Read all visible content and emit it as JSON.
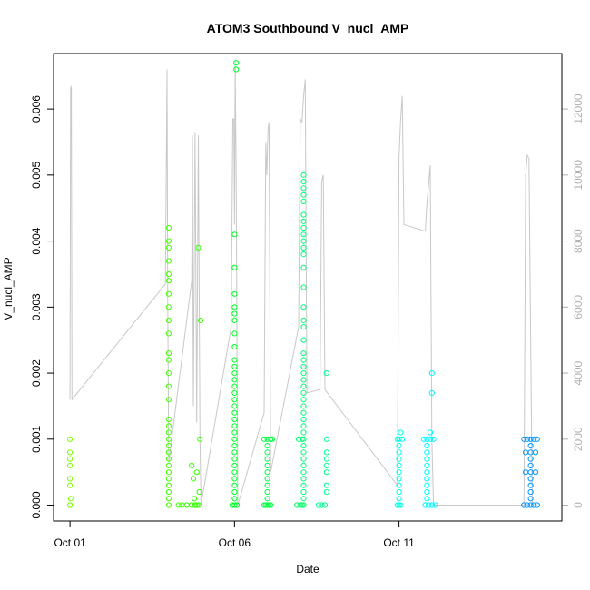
{
  "chart_data": {
    "type": "scatter",
    "title": "ATOM3 Southbound V_nucl_AMP",
    "xlabel": "Date",
    "ylabel": "V_nucl_AMP",
    "x_ticks": [
      "Oct 01",
      "Oct 06",
      "Oct 11"
    ],
    "x_tick_days": [
      1,
      6,
      11
    ],
    "xlim_days": [
      0.5,
      15.95
    ],
    "y_ticks": [
      "0.000",
      "0.001",
      "0.002",
      "0.003",
      "0.004",
      "0.005",
      "0.006"
    ],
    "ylim": [
      -0.00024,
      0.00684
    ],
    "y2_ticks": [
      "0",
      "2000",
      "4000",
      "6000",
      "8000",
      "10000",
      "12000"
    ],
    "y2lim": [
      -480,
      13680
    ],
    "point_color_note": "green-to-blue gradient over time",
    "points": [
      [
        1.0,
        0.0,
        "#7cff00"
      ],
      [
        1.0,
        0.0,
        "#7cff00"
      ],
      [
        1.02,
        0.0001,
        "#7cff00"
      ],
      [
        1.0,
        0.0003,
        "#7cff00"
      ],
      [
        1.0,
        0.0004,
        "#7cff00"
      ],
      [
        1.0,
        0.0006,
        "#7cff00"
      ],
      [
        1.0,
        0.0007,
        "#7cff00"
      ],
      [
        1.0,
        0.0008,
        "#7cff00"
      ],
      [
        1.0,
        0.001,
        "#7cff00"
      ],
      [
        4.0,
        0.0,
        "#44ff00"
      ],
      [
        4.0,
        0.0001,
        "#44ff00"
      ],
      [
        4.0,
        0.0002,
        "#44ff00"
      ],
      [
        4.0,
        0.0003,
        "#44ff00"
      ],
      [
        4.0,
        0.0004,
        "#44ff00"
      ],
      [
        4.0,
        0.0005,
        "#44ff00"
      ],
      [
        4.0,
        0.0006,
        "#44ff00"
      ],
      [
        4.0,
        0.0007,
        "#44ff00"
      ],
      [
        4.0,
        0.0008,
        "#44ff00"
      ],
      [
        4.0,
        0.0009,
        "#44ff00"
      ],
      [
        4.0,
        0.001,
        "#44ff00"
      ],
      [
        4.0,
        0.0011,
        "#44ff00"
      ],
      [
        4.0,
        0.0012,
        "#44ff00"
      ],
      [
        4.0,
        0.0013,
        "#44ff00"
      ],
      [
        4.0,
        0.0016,
        "#44ff00"
      ],
      [
        4.0,
        0.0018,
        "#44ff00"
      ],
      [
        4.0,
        0.002,
        "#44ff00"
      ],
      [
        4.0,
        0.0022,
        "#44ff00"
      ],
      [
        4.0,
        0.0023,
        "#44ff00"
      ],
      [
        4.0,
        0.0026,
        "#44ff00"
      ],
      [
        4.0,
        0.0028,
        "#44ff00"
      ],
      [
        4.0,
        0.003,
        "#44ff00"
      ],
      [
        4.0,
        0.0032,
        "#44ff00"
      ],
      [
        4.0,
        0.0034,
        "#44ff00"
      ],
      [
        4.0,
        0.0035,
        "#44ff00"
      ],
      [
        4.0,
        0.0037,
        "#44ff00"
      ],
      [
        4.0,
        0.0039,
        "#44ff00"
      ],
      [
        4.0,
        0.004,
        "#44ff00"
      ],
      [
        4.0,
        0.0042,
        "#44ff00"
      ],
      [
        4.3,
        0.0,
        "#3fff00"
      ],
      [
        4.4,
        0.0,
        "#3fff00"
      ],
      [
        4.55,
        0.0,
        "#3aff00"
      ],
      [
        4.7,
        0.0,
        "#3aff00"
      ],
      [
        4.8,
        0.0,
        "#36ff00"
      ],
      [
        4.85,
        0.0,
        "#36ff00"
      ],
      [
        4.9,
        0.0,
        "#36ff00"
      ],
      [
        4.78,
        0.0001,
        "#36ff00"
      ],
      [
        4.75,
        0.0004,
        "#36ff00"
      ],
      [
        4.85,
        0.0005,
        "#36ff00"
      ],
      [
        4.7,
        0.0006,
        "#36ff00"
      ],
      [
        4.93,
        0.0002,
        "#36ff00"
      ],
      [
        4.95,
        0.001,
        "#36ff00"
      ],
      [
        4.9,
        0.0039,
        "#36ff00"
      ],
      [
        4.97,
        0.0028,
        "#36ff00"
      ],
      [
        6.0,
        0.0,
        "#00ff24"
      ],
      [
        6.0,
        0.0001,
        "#00ff24"
      ],
      [
        6.0,
        0.0002,
        "#00ff24"
      ],
      [
        6.0,
        0.0003,
        "#00ff24"
      ],
      [
        6.0,
        0.0004,
        "#00ff24"
      ],
      [
        6.0,
        0.0005,
        "#00ff24"
      ],
      [
        6.0,
        0.0006,
        "#00ff24"
      ],
      [
        6.0,
        0.0007,
        "#00ff24"
      ],
      [
        6.0,
        0.0008,
        "#00ff24"
      ],
      [
        6.0,
        0.0009,
        "#00ff24"
      ],
      [
        6.0,
        0.001,
        "#00ff24"
      ],
      [
        6.0,
        0.0011,
        "#00ff24"
      ],
      [
        6.0,
        0.0012,
        "#00ff24"
      ],
      [
        6.0,
        0.0013,
        "#00ff24"
      ],
      [
        6.0,
        0.0014,
        "#00ff24"
      ],
      [
        6.0,
        0.0015,
        "#00ff24"
      ],
      [
        6.0,
        0.0016,
        "#00ff24"
      ],
      [
        6.0,
        0.0017,
        "#00ff24"
      ],
      [
        6.0,
        0.0018,
        "#00ff24"
      ],
      [
        6.0,
        0.0019,
        "#00ff24"
      ],
      [
        6.0,
        0.002,
        "#00ff24"
      ],
      [
        6.0,
        0.0021,
        "#00ff24"
      ],
      [
        6.0,
        0.0022,
        "#00ff24"
      ],
      [
        6.0,
        0.0024,
        "#00ff24"
      ],
      [
        6.0,
        0.0026,
        "#00ff24"
      ],
      [
        6.0,
        0.0028,
        "#00ff24"
      ],
      [
        6.0,
        0.0029,
        "#00ff24"
      ],
      [
        6.0,
        0.003,
        "#00ff24"
      ],
      [
        6.0,
        0.0032,
        "#00ff24"
      ],
      [
        6.0,
        0.0036,
        "#00ff24"
      ],
      [
        6.0,
        0.0041,
        "#00ff24"
      ],
      [
        6.05,
        0.0066,
        "#00ff24"
      ],
      [
        6.05,
        0.0067,
        "#00ff24"
      ],
      [
        5.93,
        0.0,
        "#00ff24"
      ],
      [
        6.07,
        0.0,
        "#00ff24"
      ],
      [
        6.9,
        0.0,
        "#00ff40"
      ],
      [
        6.95,
        0.0,
        "#00ff40"
      ],
      [
        7.0,
        0.0,
        "#00ff40"
      ],
      [
        7.05,
        0.0,
        "#00ff40"
      ],
      [
        7.1,
        0.0,
        "#00ff40"
      ],
      [
        7.0,
        0.0001,
        "#00ff40"
      ],
      [
        7.0,
        0.0002,
        "#00ff40"
      ],
      [
        7.0,
        0.0003,
        "#00ff40"
      ],
      [
        7.0,
        0.0004,
        "#00ff40"
      ],
      [
        7.0,
        0.0005,
        "#00ff40"
      ],
      [
        7.0,
        0.0006,
        "#00ff40"
      ],
      [
        7.0,
        0.0007,
        "#00ff40"
      ],
      [
        7.0,
        0.0008,
        "#00ff40"
      ],
      [
        7.0,
        0.0009,
        "#00ff40"
      ],
      [
        7.0,
        0.001,
        "#00ff40"
      ],
      [
        6.9,
        0.001,
        "#00ff40"
      ],
      [
        7.1,
        0.001,
        "#00ff40"
      ],
      [
        7.15,
        0.001,
        "#00ff40"
      ],
      [
        8.0,
        0.0,
        "#00ff66"
      ],
      [
        7.9,
        0.0,
        "#00ff66"
      ],
      [
        8.05,
        0.0,
        "#00ff66"
      ],
      [
        8.1,
        0.0,
        "#00ff66"
      ],
      [
        8.1,
        0.0001,
        "#00ff77"
      ],
      [
        8.1,
        0.0002,
        "#00ff77"
      ],
      [
        8.1,
        0.0003,
        "#00ff77"
      ],
      [
        8.1,
        0.0004,
        "#00ff77"
      ],
      [
        8.1,
        0.0005,
        "#00ff77"
      ],
      [
        8.1,
        0.0006,
        "#00ff77"
      ],
      [
        8.1,
        0.0007,
        "#00ff77"
      ],
      [
        8.1,
        0.0008,
        "#00ff77"
      ],
      [
        8.1,
        0.0009,
        "#00ff77"
      ],
      [
        8.1,
        0.001,
        "#00ff77"
      ],
      [
        8.1,
        0.0011,
        "#00ff77"
      ],
      [
        8.1,
        0.0012,
        "#00ff77"
      ],
      [
        8.1,
        0.0013,
        "#00ff77"
      ],
      [
        8.1,
        0.0014,
        "#00ff77"
      ],
      [
        8.1,
        0.0015,
        "#00ff77"
      ],
      [
        8.1,
        0.0016,
        "#00ff77"
      ],
      [
        8.1,
        0.0017,
        "#00ff77"
      ],
      [
        8.1,
        0.0018,
        "#00ff77"
      ],
      [
        8.1,
        0.0019,
        "#00ff77"
      ],
      [
        8.1,
        0.002,
        "#00ff77"
      ],
      [
        8.1,
        0.0021,
        "#00ff77"
      ],
      [
        8.1,
        0.0022,
        "#00ff77"
      ],
      [
        8.1,
        0.0023,
        "#00ff77"
      ],
      [
        8.1,
        0.0025,
        "#00ff77"
      ],
      [
        8.1,
        0.0027,
        "#00ff77"
      ],
      [
        8.1,
        0.0028,
        "#00ff77"
      ],
      [
        8.1,
        0.003,
        "#00ff77"
      ],
      [
        8.1,
        0.0033,
        "#00ff77"
      ],
      [
        8.1,
        0.0036,
        "#00ff77"
      ],
      [
        8.1,
        0.0038,
        "#00ff77"
      ],
      [
        8.1,
        0.0039,
        "#00ff77"
      ],
      [
        8.1,
        0.004,
        "#00ff77"
      ],
      [
        8.1,
        0.0041,
        "#00ff77"
      ],
      [
        8.1,
        0.0042,
        "#00ff77"
      ],
      [
        8.1,
        0.0043,
        "#00ff77"
      ],
      [
        8.1,
        0.0044,
        "#00ff77"
      ],
      [
        8.1,
        0.0046,
        "#00ff77"
      ],
      [
        8.1,
        0.0047,
        "#00ff77"
      ],
      [
        8.1,
        0.0048,
        "#00ff77"
      ],
      [
        8.1,
        0.0049,
        "#00ff77"
      ],
      [
        8.1,
        0.005,
        "#00ff77"
      ],
      [
        7.95,
        0.001,
        "#00ff77"
      ],
      [
        8.05,
        0.001,
        "#00ff77"
      ],
      [
        8.55,
        0.0,
        "#00ff90"
      ],
      [
        8.65,
        0.0,
        "#00ff90"
      ],
      [
        8.75,
        0.0,
        "#00ff90"
      ],
      [
        8.8,
        0.0002,
        "#00ff90"
      ],
      [
        8.8,
        0.0003,
        "#00ff90"
      ],
      [
        8.8,
        0.0005,
        "#00ff90"
      ],
      [
        8.8,
        0.0006,
        "#00ff90"
      ],
      [
        8.8,
        0.0007,
        "#00ff90"
      ],
      [
        8.8,
        0.0008,
        "#00ff90"
      ],
      [
        8.8,
        0.001,
        "#00ff90"
      ],
      [
        8.8,
        0.002,
        "#00ff90"
      ],
      [
        11.0,
        0.0,
        "#00ffe6"
      ],
      [
        11.05,
        0.0,
        "#00ffe6"
      ],
      [
        10.95,
        0.0,
        "#00ffe6"
      ],
      [
        11.0,
        0.0001,
        "#00ffe6"
      ],
      [
        11.0,
        0.0002,
        "#00ffe6"
      ],
      [
        11.0,
        0.0003,
        "#00ffe6"
      ],
      [
        11.0,
        0.0004,
        "#00ffe6"
      ],
      [
        11.0,
        0.0005,
        "#00ffe6"
      ],
      [
        11.0,
        0.0006,
        "#00ffe6"
      ],
      [
        11.0,
        0.0007,
        "#00ffe6"
      ],
      [
        11.0,
        0.0008,
        "#00ffe6"
      ],
      [
        11.0,
        0.0009,
        "#00ffe6"
      ],
      [
        11.0,
        0.001,
        "#00ffe6"
      ],
      [
        11.05,
        0.0011,
        "#00ffe6"
      ],
      [
        10.95,
        0.001,
        "#00ffe6"
      ],
      [
        11.1,
        0.001,
        "#00ffe6"
      ],
      [
        11.8,
        0.0,
        "#00f6ff"
      ],
      [
        11.9,
        0.0,
        "#00f6ff"
      ],
      [
        12.0,
        0.0,
        "#00f6ff"
      ],
      [
        12.1,
        0.0,
        "#00f6ff"
      ],
      [
        11.85,
        0.0001,
        "#00f6ff"
      ],
      [
        11.85,
        0.0002,
        "#00f6ff"
      ],
      [
        11.85,
        0.0003,
        "#00f6ff"
      ],
      [
        11.85,
        0.0004,
        "#00f6ff"
      ],
      [
        11.85,
        0.0005,
        "#00f6ff"
      ],
      [
        11.85,
        0.0006,
        "#00f6ff"
      ],
      [
        11.85,
        0.0007,
        "#00f6ff"
      ],
      [
        11.85,
        0.0008,
        "#00f6ff"
      ],
      [
        11.85,
        0.0009,
        "#00f6ff"
      ],
      [
        11.85,
        0.001,
        "#00f6ff"
      ],
      [
        11.95,
        0.001,
        "#00f6ff"
      ],
      [
        12.05,
        0.001,
        "#00f6ff"
      ],
      [
        11.75,
        0.001,
        "#00f6ff"
      ],
      [
        11.95,
        0.0011,
        "#00f6ff"
      ],
      [
        12.0,
        0.0017,
        "#00f6ff"
      ],
      [
        12.0,
        0.002,
        "#00f6ff"
      ],
      [
        14.8,
        0.0,
        "#0096ff"
      ],
      [
        14.9,
        0.0,
        "#0096ff"
      ],
      [
        15.0,
        0.0,
        "#0096ff"
      ],
      [
        15.1,
        0.0,
        "#0096ff"
      ],
      [
        15.2,
        0.0,
        "#0096ff"
      ],
      [
        15.0,
        0.0001,
        "#0096ff"
      ],
      [
        15.0,
        0.0002,
        "#0096ff"
      ],
      [
        15.0,
        0.0003,
        "#0096ff"
      ],
      [
        15.0,
        0.0004,
        "#0096ff"
      ],
      [
        15.0,
        0.0005,
        "#0096ff"
      ],
      [
        15.0,
        0.0006,
        "#0096ff"
      ],
      [
        15.0,
        0.0007,
        "#0096ff"
      ],
      [
        15.0,
        0.0008,
        "#0096ff"
      ],
      [
        15.0,
        0.0009,
        "#0096ff"
      ],
      [
        15.0,
        0.001,
        "#0096ff"
      ],
      [
        14.8,
        0.001,
        "#0096ff"
      ],
      [
        14.9,
        0.001,
        "#0096ff"
      ],
      [
        15.1,
        0.001,
        "#0096ff"
      ],
      [
        15.2,
        0.001,
        "#0096ff"
      ],
      [
        14.85,
        0.0005,
        "#0096ff"
      ],
      [
        15.15,
        0.0005,
        "#0096ff"
      ],
      [
        14.85,
        0.0008,
        "#0096ff"
      ],
      [
        15.15,
        0.0008,
        "#0096ff"
      ]
    ],
    "line_series": {
      "name": "",
      "color": "#c8c8c8",
      "axis": "right",
      "points": [
        [
          1.0,
          3200
        ],
        [
          1.02,
          12600
        ],
        [
          1.04,
          12700
        ],
        [
          1.06,
          3200
        ],
        [
          3.9,
          6700
        ],
        [
          3.95,
          13200
        ],
        [
          3.97,
          6100
        ],
        [
          4.0,
          1300
        ],
        [
          4.7,
          6800
        ],
        [
          4.72,
          11200
        ],
        [
          4.75,
          3000
        ],
        [
          4.8,
          11300
        ],
        [
          4.85,
          2500
        ],
        [
          4.9,
          11200
        ],
        [
          4.95,
          2000
        ],
        [
          4.98,
          0
        ],
        [
          5.9,
          5400
        ],
        [
          5.95,
          11700
        ],
        [
          5.98,
          11700
        ],
        [
          6.0,
          8500
        ],
        [
          6.02,
          13400
        ],
        [
          6.05,
          9900
        ],
        [
          6.1,
          0
        ],
        [
          6.9,
          2800
        ],
        [
          6.95,
          11000
        ],
        [
          6.98,
          10000
        ],
        [
          7.02,
          11400
        ],
        [
          7.05,
          11600
        ],
        [
          7.1,
          1000
        ],
        [
          7.95,
          5400
        ],
        [
          8.0,
          11700
        ],
        [
          8.05,
          11600
        ],
        [
          8.1,
          12400
        ],
        [
          8.15,
          12900
        ],
        [
          8.2,
          3400
        ],
        [
          8.6,
          3500
        ],
        [
          8.65,
          9800
        ],
        [
          8.7,
          10000
        ],
        [
          8.75,
          3500
        ],
        [
          10.95,
          600
        ],
        [
          11.0,
          10500
        ],
        [
          11.05,
          11700
        ],
        [
          11.1,
          12400
        ],
        [
          11.15,
          8500
        ],
        [
          11.8,
          8300
        ],
        [
          11.85,
          9200
        ],
        [
          11.9,
          9700
        ],
        [
          11.95,
          10300
        ],
        [
          12.0,
          2000
        ],
        [
          12.05,
          0
        ],
        [
          14.8,
          0
        ],
        [
          14.85,
          10000
        ],
        [
          14.9,
          10600
        ],
        [
          14.95,
          10500
        ],
        [
          15.0,
          5100
        ],
        [
          15.05,
          0
        ]
      ]
    }
  }
}
